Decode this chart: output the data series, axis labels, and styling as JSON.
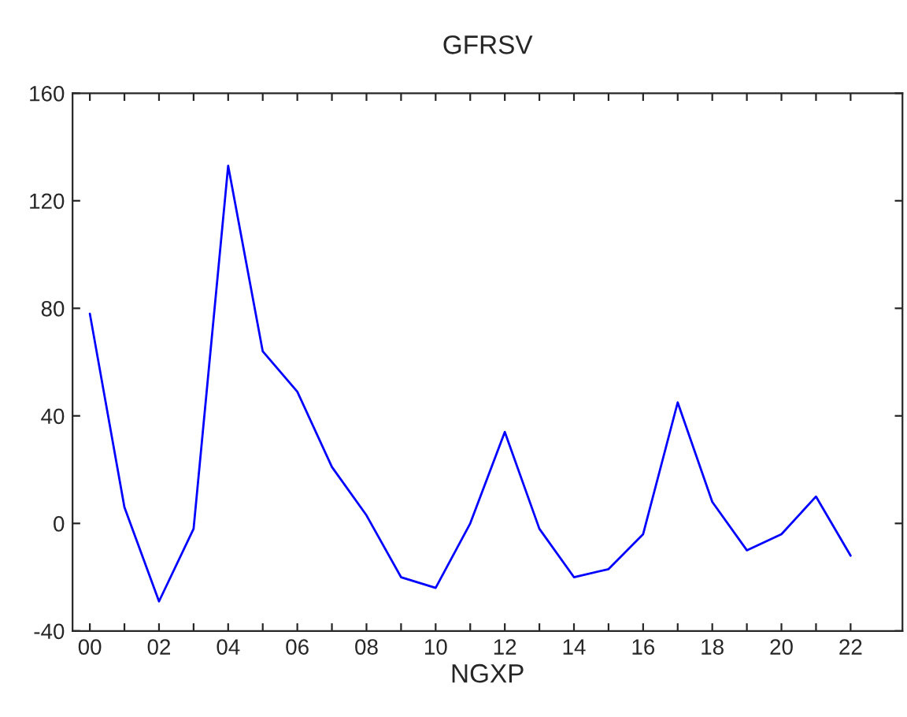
{
  "chart_data": {
    "type": "line",
    "title": "GFRSV",
    "xlabel": "NGXP",
    "categories": [
      "00",
      null,
      "02",
      null,
      "04",
      null,
      "06",
      null,
      "08",
      null,
      "10",
      null,
      "12",
      null,
      "14",
      null,
      "16",
      null,
      "18",
      null,
      "20",
      null,
      "22"
    ],
    "series": [
      {
        "color": "#0000ff",
        "values": [
          78,
          6,
          -29,
          -2,
          133,
          64,
          49,
          21,
          3,
          -20,
          -24,
          0,
          34,
          -2,
          -20,
          -17,
          -4,
          45,
          8,
          -10,
          -4,
          10,
          -12
        ]
      }
    ],
    "ylim": [
      -40,
      160
    ],
    "yticks": [
      -40,
      0,
      40,
      80,
      120,
      160
    ],
    "grid": false,
    "legend": false,
    "marker": "none",
    "line_style": "solid"
  }
}
